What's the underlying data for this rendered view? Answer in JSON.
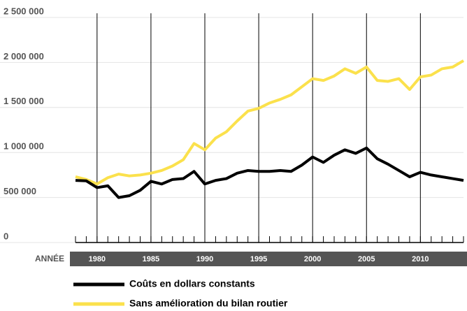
{
  "chart_data": {
    "type": "line",
    "x_label": "ANNÉE",
    "x": [
      1978,
      1979,
      1980,
      1981,
      1982,
      1983,
      1984,
      1985,
      1986,
      1987,
      1988,
      1989,
      1990,
      1991,
      1992,
      1993,
      1994,
      1995,
      1996,
      1997,
      1998,
      1999,
      2000,
      2001,
      2002,
      2003,
      2004,
      2005,
      2006,
      2007,
      2008,
      2009,
      2010,
      2011,
      2012,
      2013,
      2014
    ],
    "series": [
      {
        "name": "Coûts en dollars constants",
        "color": "#000000",
        "values": [
          690000,
          685000,
          610000,
          630000,
          500000,
          520000,
          580000,
          680000,
          650000,
          700000,
          710000,
          790000,
          650000,
          690000,
          710000,
          770000,
          800000,
          790000,
          790000,
          800000,
          790000,
          860000,
          950000,
          890000,
          970000,
          1030000,
          990000,
          1050000,
          930000,
          870000,
          800000,
          730000,
          780000,
          750000,
          730000,
          710000,
          690000
        ]
      },
      {
        "name": "Sans amélioration du bilan routier",
        "color": "#fbe14c",
        "values": [
          730000,
          700000,
          650000,
          720000,
          760000,
          740000,
          750000,
          770000,
          800000,
          850000,
          920000,
          1100000,
          1030000,
          1160000,
          1230000,
          1350000,
          1460000,
          1490000,
          1550000,
          1590000,
          1640000,
          1730000,
          1820000,
          1800000,
          1850000,
          1930000,
          1880000,
          1950000,
          1800000,
          1790000,
          1820000,
          1700000,
          1840000,
          1860000,
          1930000,
          1950000,
          2020000
        ]
      }
    ],
    "xlim": [
      1978,
      2014
    ],
    "xticks": [
      1980,
      1985,
      1990,
      1995,
      2000,
      2005,
      2010
    ],
    "ylim": [
      0,
      2500000
    ],
    "yticks": [
      0,
      {
        "value": 500000,
        "label": "500 000"
      },
      {
        "value": 1000000,
        "label": "1 000 000"
      },
      {
        "value": 1500000,
        "label": "1 500 000"
      },
      {
        "value": 2000000,
        "label": "2 000 000"
      },
      {
        "value": 2500000,
        "label": "2 500 000"
      }
    ],
    "grid": true
  }
}
